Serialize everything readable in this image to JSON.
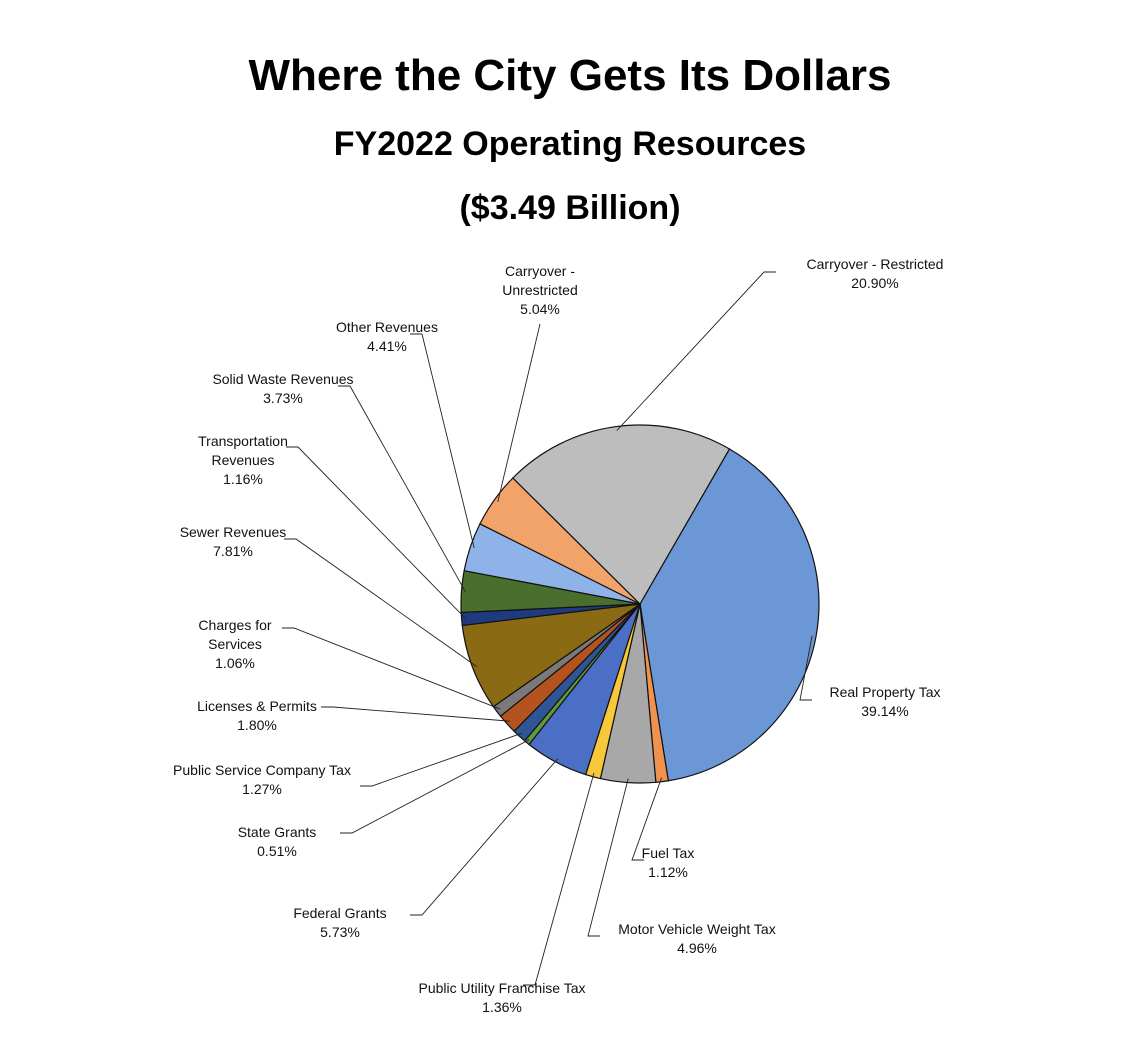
{
  "chart_data": {
    "type": "pie",
    "title": "Where the City Gets Its Dollars",
    "subtitle": "FY2022 Operating Resources",
    "total_label": "($3.49 Billion)",
    "slices": [
      {
        "label": "Real Property Tax",
        "lines": [
          "Real Property Tax"
        ],
        "percent_label": "39.14%",
        "value": 39.14,
        "color": "#6B97D6"
      },
      {
        "label": "Fuel Tax",
        "lines": [
          "Fuel Tax"
        ],
        "percent_label": "1.12%",
        "value": 1.12,
        "color": "#F0924F"
      },
      {
        "label": "Motor Vehicle Weight Tax",
        "lines": [
          "Motor Vehicle Weight Tax"
        ],
        "percent_label": "4.96%",
        "value": 4.96,
        "color": "#A8A8A8"
      },
      {
        "label": "Public Utility Franchise Tax",
        "lines": [
          "Public Utility Franchise Tax"
        ],
        "percent_label": "1.36%",
        "value": 1.36,
        "color": "#F6C83A"
      },
      {
        "label": "Federal Grants",
        "lines": [
          "Federal Grants"
        ],
        "percent_label": "5.73%",
        "value": 5.73,
        "color": "#4A6FC4"
      },
      {
        "label": "State Grants",
        "lines": [
          "State Grants"
        ],
        "percent_label": "0.51%",
        "value": 0.51,
        "color": "#5E9A3A"
      },
      {
        "label": "Public Service Company Tax",
        "lines": [
          "Public Service Company Tax"
        ],
        "percent_label": "1.27%",
        "value": 1.27,
        "color": "#2F5597"
      },
      {
        "label": "Licenses & Permits",
        "lines": [
          "Licenses & Permits"
        ],
        "percent_label": "1.80%",
        "value": 1.8,
        "color": "#B5531E"
      },
      {
        "label": "Charges for Services",
        "lines": [
          "Charges for",
          "Services"
        ],
        "percent_label": "1.06%",
        "value": 1.06,
        "color": "#7A7A7A"
      },
      {
        "label": "Sewer Revenues",
        "lines": [
          "Sewer Revenues"
        ],
        "percent_label": "7.81%",
        "value": 7.81,
        "color": "#8B6A14"
      },
      {
        "label": "Transportation Revenues",
        "lines": [
          "Transportation",
          "Revenues"
        ],
        "percent_label": "1.16%",
        "value": 1.16,
        "color": "#203A80"
      },
      {
        "label": "Solid Waste Revenues",
        "lines": [
          "Solid Waste Revenues"
        ],
        "percent_label": "3.73%",
        "value": 3.73,
        "color": "#4A6E2E"
      },
      {
        "label": "Other Revenues",
        "lines": [
          "Other Revenues"
        ],
        "percent_label": "4.41%",
        "value": 4.41,
        "color": "#8DB3E8"
      },
      {
        "label": "Carryover - Unrestricted",
        "lines": [
          "Carryover -",
          "Unrestricted"
        ],
        "percent_label": "5.04%",
        "value": 5.04,
        "color": "#F2A36A"
      },
      {
        "label": "Carryover - Restricted",
        "lines": [
          "Carryover - Restricted"
        ],
        "percent_label": "20.90%",
        "value": 20.9,
        "color": "#BDBDBD"
      }
    ]
  }
}
